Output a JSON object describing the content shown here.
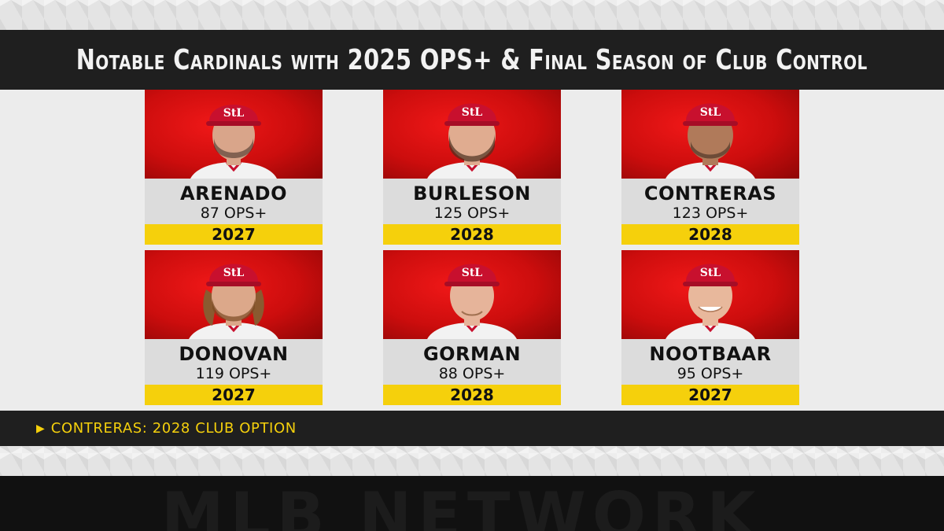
{
  "title": "Notable Cardinals with 2025 OPS+ & Final Season of Club Control",
  "players": [
    {
      "name": "ARENADO",
      "ops": "87 OPS+",
      "year": "2027"
    },
    {
      "name": "BURLESON",
      "ops": "125 OPS+",
      "year": "2028"
    },
    {
      "name": "CONTRERAS",
      "ops": "123 OPS+",
      "year": "2028"
    },
    {
      "name": "DONOVAN",
      "ops": "119 OPS+",
      "year": "2027"
    },
    {
      "name": "GORMAN",
      "ops": "88 OPS+",
      "year": "2028"
    },
    {
      "name": "NOOTBAAR",
      "ops": "95 OPS+",
      "year": "2027"
    }
  ],
  "note": {
    "arrow_icon": "play-triangle-icon",
    "text": "CONTRERAS: 2028 CLUB OPTION"
  },
  "footer": {
    "wordmark": "MLB NETWORK"
  },
  "colors": {
    "accent_yellow": "#f5d00c",
    "bar_dark": "#1f1f1f",
    "photo_red": "#cc0d0d",
    "cap_red": "#c8102e"
  }
}
